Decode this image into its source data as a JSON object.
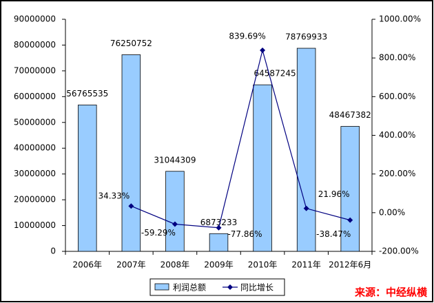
{
  "chart_data": {
    "type": "bar-line",
    "categories": [
      "2006年",
      "2007年",
      "2008年",
      "2009年",
      "2010年",
      "2011年",
      "2012年6月"
    ],
    "series": [
      {
        "name": "利润总额",
        "type": "bar",
        "color": "#99ccff",
        "axis": "y",
        "values": [
          56765535,
          76250752,
          31044309,
          6873233,
          64587245,
          78769933,
          48467382
        ]
      },
      {
        "name": "同比增长",
        "type": "line",
        "color": "#000080",
        "axis": "y2",
        "values": [
          null,
          34.33,
          -59.29,
          -77.86,
          839.69,
          21.96,
          -38.47
        ],
        "value_labels": [
          null,
          "34.33%",
          "-59.29%",
          "-77.86%",
          "839.69%",
          "21.96%",
          "-38.47%"
        ]
      }
    ],
    "ylim": [
      0,
      90000000
    ],
    "yticks": [
      0,
      10000000,
      20000000,
      30000000,
      40000000,
      50000000,
      60000000,
      70000000,
      80000000,
      90000000
    ],
    "y2lim": [
      -200,
      1000
    ],
    "y2ticks": [
      {
        "value": -200,
        "label": "-200.00%"
      },
      {
        "value": 0,
        "label": "0.00%"
      },
      {
        "value": 200,
        "label": "200.00%"
      },
      {
        "value": 400,
        "label": "400.00%"
      },
      {
        "value": 600,
        "label": "600.00%"
      },
      {
        "value": 800,
        "label": "800.00%"
      },
      {
        "value": 1000,
        "label": "1000.00%"
      }
    ],
    "legend": "bottom",
    "annotation": "来源：中经纵横"
  }
}
